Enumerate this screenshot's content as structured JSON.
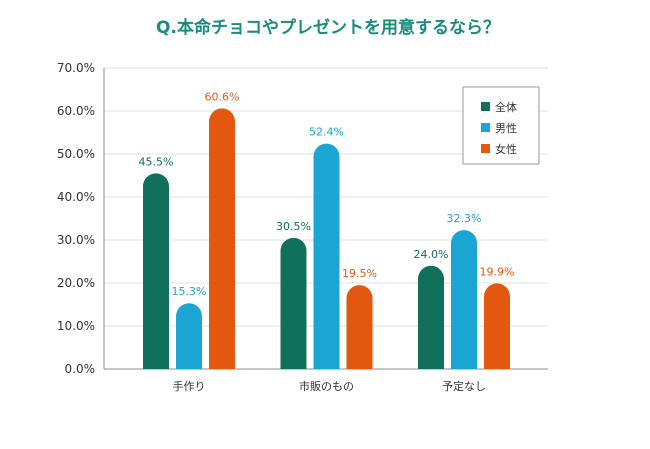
{
  "chart_data": {
    "type": "bar",
    "title": "Q.本命チョコやプレゼントを用意するなら？",
    "xlabel": "",
    "ylabel": "",
    "categories": [
      "手作り",
      "市販のもの",
      "予定なし"
    ],
    "series": [
      {
        "name": "全体",
        "values": [
          45.5,
          30.5,
          24.0
        ],
        "color": "#10705a"
      },
      {
        "name": "男性",
        "values": [
          15.3,
          52.4,
          32.3
        ],
        "color": "#1ba5d2"
      },
      {
        "name": "女性",
        "values": [
          60.6,
          19.5,
          19.9
        ],
        "color": "#e2580f"
      }
    ],
    "ylim": [
      0,
      70
    ],
    "yticks": [
      0,
      10,
      20,
      30,
      40,
      50,
      60,
      70
    ],
    "grid": true,
    "legend": "top-right"
  },
  "colors": {
    "title": "#1b8b7d",
    "axis_text": "#333333",
    "grid": "#e0e0e0"
  }
}
